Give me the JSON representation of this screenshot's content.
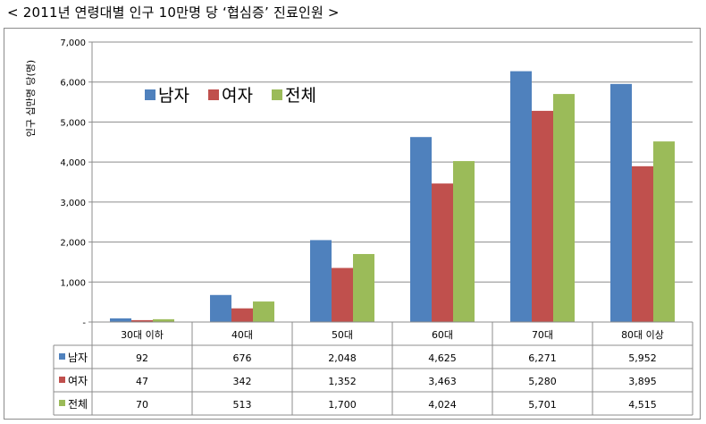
{
  "title": "< 2011년 연령대별 인구 10만명 당 ‘협심증’ 진료인원 >",
  "chart_data": {
    "type": "bar",
    "title": "< 2011년 연령대별 인구 10만명 당 ‘협심증’ 진료인원 >",
    "ylabel": "인구 십만명 당(명)",
    "xlabel": "",
    "ylim": [
      0,
      7000
    ],
    "yticks": [
      "-",
      "1,000",
      "2,000",
      "3,000",
      "4,000",
      "5,000",
      "6,000",
      "7,000"
    ],
    "grid": true,
    "legend_position": "top-left",
    "categories": [
      "30대 이하",
      "40대",
      "50대",
      "60대",
      "70대",
      "80대 이상"
    ],
    "series": [
      {
        "name": "남자",
        "color": "#4f81bd",
        "values": [
          92,
          676,
          2048,
          4625,
          6271,
          5952
        ],
        "labels": [
          "92",
          "676",
          "2,048",
          "4,625",
          "6,271",
          "5,952"
        ]
      },
      {
        "name": "여자",
        "color": "#c0504d",
        "values": [
          47,
          342,
          1352,
          3463,
          5280,
          3895
        ],
        "labels": [
          "47",
          "342",
          "1,352",
          "3,463",
          "5,280",
          "3,895"
        ]
      },
      {
        "name": "전체",
        "color": "#9bbb59",
        "values": [
          70,
          513,
          1700,
          4024,
          5701,
          4515
        ],
        "labels": [
          "70",
          "513",
          "1,700",
          "4,024",
          "5,701",
          "4,515"
        ]
      }
    ]
  }
}
